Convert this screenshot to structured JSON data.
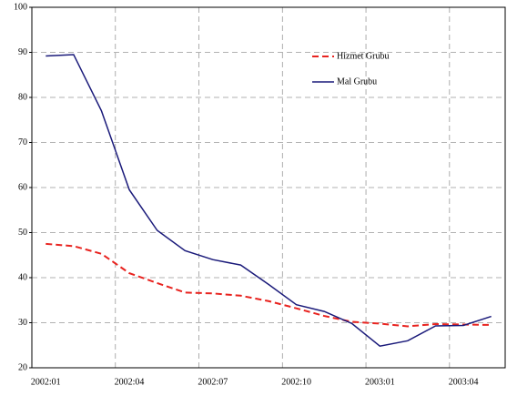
{
  "chart_data": {
    "type": "line",
    "categories": [
      "2002:01",
      null,
      null,
      "2002:04",
      null,
      null,
      "2002:07",
      null,
      null,
      "2002:10",
      null,
      null,
      "2003:01",
      null,
      null,
      "2003:04",
      null
    ],
    "series": [
      {
        "name": "Hizmet Grubu",
        "color": "#e8231f",
        "dashed": true,
        "values": [
          47.5,
          47,
          45.3,
          41,
          38.8,
          36.7,
          36.5,
          36,
          34.8,
          33.2,
          31.5,
          30.2,
          29.8,
          29.2,
          29.7,
          29.6,
          29.5
        ]
      },
      {
        "name": "Mal Grubu",
        "color": "#1a1a7a",
        "dashed": false,
        "values": [
          89.2,
          89.5,
          77,
          59.5,
          50.5,
          46,
          44,
          42.8,
          38.5,
          34,
          32.5,
          29.8,
          24.8,
          26,
          29.3,
          29.4,
          31.4
        ]
      }
    ],
    "ylim": [
      20,
      100
    ],
    "yticks": [
      20,
      30,
      40,
      50,
      60,
      70,
      80,
      90,
      100
    ],
    "grid": true
  }
}
